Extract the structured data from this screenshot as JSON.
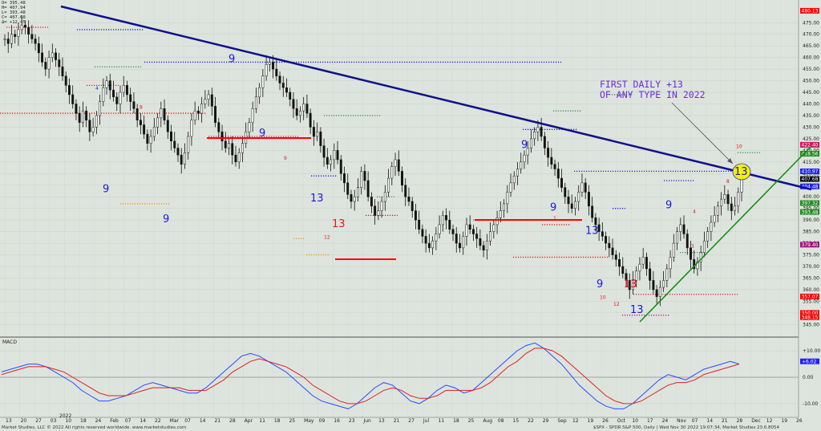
{
  "footer": {
    "left": "Market Studies, LLC © 2022 All rights reserved worldwide. www.marketstudies.com",
    "right": "$SPX - SPDR S&P 500, Daily | Wed Nov 30 2022 19:07:34, Market Studies 23.6.8054"
  },
  "ohlc": [
    "O= 395.48",
    "H= 407.94",
    "L= 393.48",
    "C= 407.68",
    "Δ= +12.45"
  ],
  "annotation": {
    "line1": "FIRST DAILY +13",
    "line2": "OF ANY TYPE IN 2022"
  },
  "colors": {
    "bg": "#dde4dd",
    "trend": "#10108a",
    "support": "#159015",
    "red": "#ff0000",
    "macd": "#2a4aff",
    "signal": "#e02020",
    "count_blue": "#1a1adc",
    "count_red": "#e01818",
    "highlight": "#f2f200"
  },
  "chart_data": [
    {
      "type": "candlestick",
      "title": "",
      "y_ticks": [
        345,
        350,
        355,
        360,
        365,
        370,
        375,
        380,
        385,
        390,
        395,
        400,
        405,
        410,
        415,
        420,
        425,
        430,
        435,
        440,
        445,
        450,
        455,
        460,
        465,
        470,
        475
      ],
      "ylim": [
        342,
        482
      ],
      "x_tick_labels": [
        "13",
        "20",
        "27",
        "03",
        "10",
        "18",
        "24",
        "Feb",
        "07",
        "14",
        "22",
        "Mar",
        "07",
        "14",
        "21",
        "28",
        "Apr",
        "11",
        "18",
        "25",
        "May",
        "09",
        "16",
        "23",
        "Jun",
        "13",
        "21",
        "27",
        "Jul",
        "11",
        "18",
        "25",
        "Aug",
        "08",
        "15",
        "22",
        "29",
        "Sep",
        "12",
        "19",
        "26",
        "Oct",
        "10",
        "17",
        "24",
        "Nov",
        "07",
        "14",
        "21",
        "28",
        "Dec",
        "12",
        "19",
        "26"
      ],
      "year_label": "2022",
      "price_labels": [
        {
          "value": "480.13",
          "color": "#ff0000"
        },
        {
          "value": "422.40",
          "color": "#d01060"
        },
        {
          "value": "418.56",
          "color": "#208a20"
        },
        {
          "value": "407.68",
          "color": "#000000"
        },
        {
          "value": "410.97",
          "color": "#2020ff"
        },
        {
          "value": "404.48",
          "color": "#2020ff"
        },
        {
          "value": "397.32",
          "color": "#208a20"
        },
        {
          "value": "393.48",
          "color": "#208a20"
        },
        {
          "value": "379.40",
          "color": "#a01080"
        },
        {
          "value": "357.07",
          "color": "#ff0000"
        },
        {
          "value": "350.00",
          "color": "#ff0000"
        },
        {
          "value": "348.15",
          "color": "#ff0000"
        }
      ],
      "closes": [
        468,
        466,
        470,
        469,
        472,
        474,
        473,
        470,
        468,
        466,
        462,
        458,
        455,
        460,
        462,
        459,
        456,
        452,
        448,
        444,
        440,
        436,
        432,
        437,
        433,
        428,
        430,
        435,
        441,
        447,
        450,
        446,
        443,
        440,
        445,
        448,
        444,
        441,
        438,
        433,
        431,
        427,
        423,
        426,
        430,
        434,
        438,
        433,
        428,
        424,
        421,
        418,
        414,
        419,
        426,
        433,
        437,
        436,
        440,
        442,
        444,
        439,
        432,
        428,
        424,
        421,
        423,
        418,
        415,
        419,
        423,
        428,
        432,
        438,
        443,
        447,
        452,
        457,
        458,
        455,
        452,
        449,
        447,
        445,
        442,
        438,
        435,
        437,
        440,
        436,
        430,
        426,
        428,
        422,
        417,
        414,
        416,
        420,
        416,
        410,
        406,
        401,
        398,
        400,
        404,
        411,
        407,
        400,
        396,
        392,
        394,
        398,
        402,
        408,
        413,
        416,
        411,
        405,
        400,
        398,
        394,
        390,
        386,
        383,
        380,
        378,
        381,
        384,
        388,
        392,
        390,
        386,
        384,
        380,
        378,
        383,
        388,
        386,
        384,
        382,
        379,
        377,
        381,
        385,
        388,
        391,
        394,
        397,
        402,
        406,
        409,
        412,
        415,
        418,
        421,
        425,
        428,
        430,
        426,
        421,
        417,
        414,
        412,
        408,
        404,
        400,
        397,
        395,
        398,
        402,
        406,
        402,
        396,
        391,
        388,
        385,
        383,
        380,
        378,
        375,
        373,
        370,
        367,
        364,
        360,
        364,
        368,
        371,
        374,
        369,
        364,
        360,
        357,
        361,
        364,
        369,
        374,
        380,
        385,
        388,
        384,
        378,
        373,
        369,
        372,
        376,
        381,
        385,
        389,
        392,
        396,
        399,
        401,
        397,
        394,
        396,
        402,
        408
      ]
    },
    {
      "type": "line",
      "title": "MACD",
      "y_ticks": [
        "+10.00",
        "0.00",
        "-10.00"
      ],
      "ylim": [
        -14,
        14
      ],
      "current_value": "+6.02",
      "series": [
        {
          "name": "",
          "values": [
            2,
            3,
            4,
            5,
            5,
            4,
            2,
            0,
            -2,
            -5,
            -7,
            -9,
            -9,
            -8,
            -7,
            -5,
            -3,
            -2,
            -3,
            -4,
            -5,
            -6,
            -6,
            -4,
            -1,
            2,
            5,
            8,
            9,
            8,
            6,
            4,
            2,
            -1,
            -4,
            -7,
            -9,
            -10,
            -11,
            -12,
            -10,
            -7,
            -4,
            -2,
            -3,
            -6,
            -9,
            -10,
            -8,
            -5,
            -3,
            -4,
            -6,
            -5,
            -2,
            1,
            4,
            7,
            10,
            12,
            13,
            11,
            8,
            5,
            1,
            -3,
            -6,
            -9,
            -11,
            -12,
            -12,
            -10,
            -7,
            -4,
            -1,
            1,
            0,
            -1,
            1,
            3,
            4,
            5,
            6,
            5
          ]
        },
        {
          "name": "",
          "values": [
            1,
            2,
            3,
            4,
            4,
            4,
            3,
            2,
            0,
            -2,
            -4,
            -6,
            -7,
            -7,
            -7,
            -6,
            -5,
            -4,
            -4,
            -4,
            -4,
            -5,
            -5,
            -5,
            -3,
            -1,
            2,
            4,
            6,
            7,
            6,
            5,
            4,
            2,
            0,
            -3,
            -5,
            -7,
            -9,
            -10,
            -10,
            -9,
            -7,
            -5,
            -4,
            -5,
            -7,
            -8,
            -8,
            -7,
            -5,
            -5,
            -5,
            -5,
            -4,
            -2,
            1,
            4,
            6,
            9,
            11,
            11,
            10,
            8,
            5,
            2,
            -1,
            -4,
            -7,
            -9,
            -10,
            -10,
            -9,
            -7,
            -5,
            -3,
            -2,
            -2,
            -1,
            1,
            2,
            3,
            4,
            5
          ]
        }
      ]
    }
  ]
}
